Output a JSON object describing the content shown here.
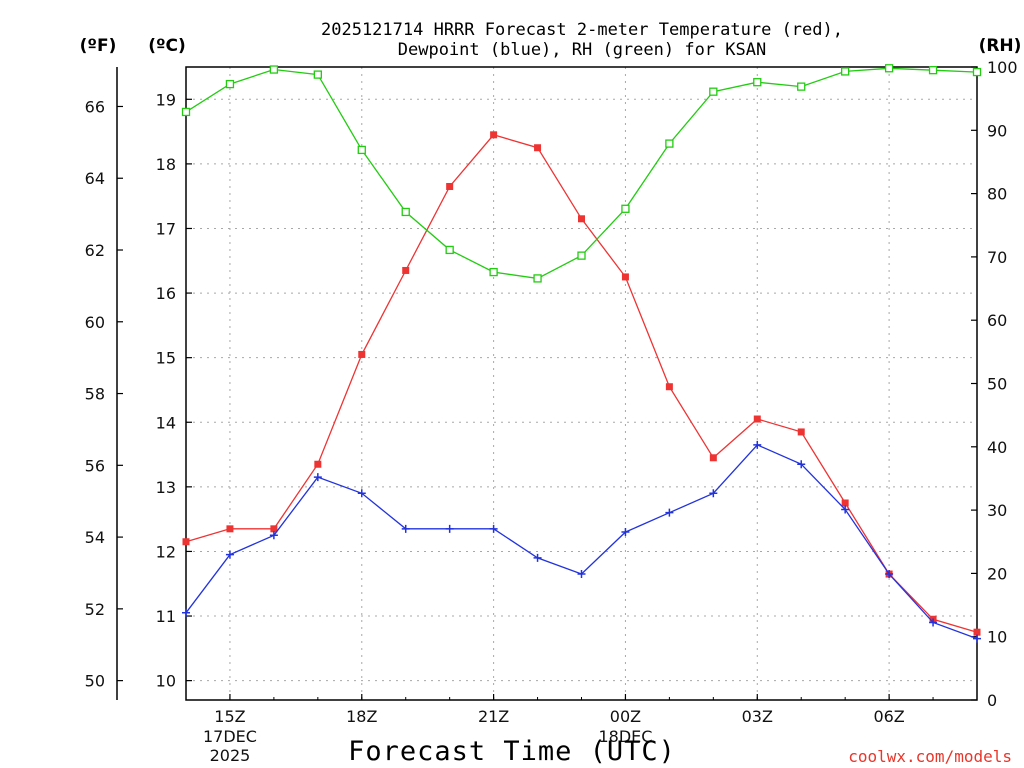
{
  "colors": {
    "temperature": "#ee3333",
    "dewpoint": "#2233dd",
    "rh": "#22cc11",
    "credit": "#e8362b"
  },
  "chart_data": {
    "type": "line",
    "title_line1": "2025121714 HRRR Forecast 2-meter Temperature (red),",
    "title_line2": "Dewpoint (blue), RH (green) for KSAN",
    "xlabel": "Forecast Time (UTC)",
    "credit": "coolwx.com/models",
    "units": {
      "fahrenheit": "(ºF)",
      "celsius": "(ºC)",
      "rh": "(RH)"
    },
    "x": [
      14,
      15,
      16,
      17,
      18,
      19,
      20,
      21,
      22,
      23,
      24,
      25,
      26,
      27,
      28,
      29,
      30,
      31,
      32
    ],
    "xlim": [
      14,
      32
    ],
    "x_ticks": [
      {
        "x": 15,
        "label": "15Z",
        "sub1": "17DEC",
        "sub2": "2025"
      },
      {
        "x": 18,
        "label": "18Z",
        "sub1": "",
        "sub2": ""
      },
      {
        "x": 21,
        "label": "21Z",
        "sub1": "",
        "sub2": ""
      },
      {
        "x": 24,
        "label": "00Z",
        "sub1": "18DEC",
        "sub2": ""
      },
      {
        "x": 27,
        "label": "03Z",
        "sub1": "",
        "sub2": ""
      },
      {
        "x": 30,
        "label": "06Z",
        "sub1": "",
        "sub2": ""
      }
    ],
    "ylim_celsius": [
      9.7,
      19.5
    ],
    "y_ticks_celsius": [
      "10",
      "11",
      "12",
      "13",
      "14",
      "15",
      "16",
      "17",
      "18",
      "19"
    ],
    "y_ticks_fahrenheit": [
      "50",
      "52",
      "54",
      "56",
      "58",
      "60",
      "62",
      "64",
      "66"
    ],
    "ylim_rh": [
      0,
      100
    ],
    "y_ticks_rh": [
      "0",
      "10",
      "20",
      "30",
      "40",
      "50",
      "60",
      "70",
      "80",
      "90",
      "100"
    ],
    "series": [
      {
        "name": "Temperature",
        "axis": "celsius",
        "marker": "filled-square",
        "values": [
          12.15,
          12.35,
          12.35,
          13.35,
          15.05,
          16.35,
          17.65,
          18.45,
          18.25,
          17.15,
          16.25,
          14.55,
          13.45,
          14.05,
          13.85,
          12.75,
          11.65,
          10.95,
          10.75
        ]
      },
      {
        "name": "Dewpoint",
        "axis": "celsius",
        "marker": "plus",
        "values": [
          11.05,
          11.95,
          12.25,
          13.15,
          12.9,
          12.35,
          12.35,
          12.35,
          11.9,
          11.65,
          12.3,
          12.6,
          12.9,
          13.65,
          13.35,
          12.65,
          11.65,
          10.9,
          10.65
        ]
      },
      {
        "name": "RH",
        "axis": "rh",
        "marker": "open-square",
        "values": [
          92.9,
          97.3,
          99.6,
          98.8,
          86.9,
          77.1,
          71.1,
          67.6,
          66.6,
          70.2,
          77.6,
          87.9,
          96.1,
          97.6,
          96.9,
          99.3,
          99.8,
          99.5,
          99.2
        ]
      }
    ]
  }
}
